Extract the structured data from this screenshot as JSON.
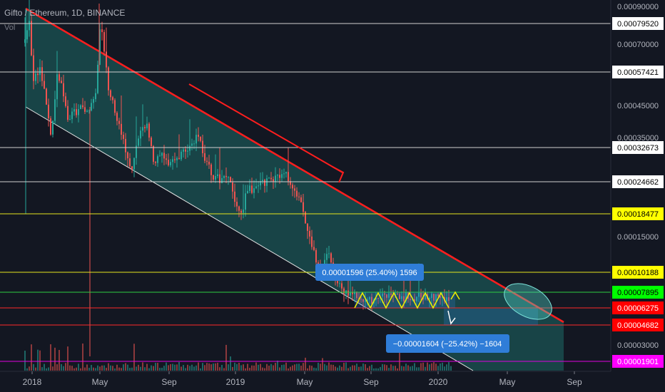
{
  "header": {
    "title": "Gifto / Ethereum, 1D, BINANCE",
    "volume_label": "Vol"
  },
  "chart_data": {
    "type": "candlestick",
    "instrument": "Gifto / Ethereum",
    "interval": "1D",
    "exchange": "BINANCE",
    "x_tick_labels": [
      "2018",
      "May",
      "Sep",
      "2019",
      "May",
      "Sep",
      "2020",
      "May",
      "Sep"
    ],
    "y_tick_labels": [
      "0.00090000",
      "0.00070000",
      "0.00045000",
      "0.00035000",
      "0.00015000",
      "0.00003000"
    ],
    "horizontal_levels": [
      {
        "value": "0.00079520",
        "color": "#ffffff"
      },
      {
        "value": "0.00057421",
        "color": "#ffffff"
      },
      {
        "value": "0.00032673",
        "color": "#ffffff"
      },
      {
        "value": "0.00024662",
        "color": "#ffffff"
      },
      {
        "value": "0.00018477",
        "color": "#ffff00"
      },
      {
        "value": "0.00010188",
        "color": "#ffff00"
      },
      {
        "value": "0.00007895",
        "color": "#00ff00"
      },
      {
        "value": "0.00006275",
        "color": "#ff0000"
      },
      {
        "value": "0.00004682",
        "color": "#ff0000"
      },
      {
        "value": "0.00001901",
        "color": "#ff00ff"
      }
    ],
    "annotations": [
      {
        "text": "0.00001596 (25.40%) 1596",
        "kind": "price-range-up"
      },
      {
        "text": "−0.00001604 (−25.42%) −1604",
        "kind": "price-range-down"
      }
    ],
    "colors": {
      "background": "#131722",
      "bull": "#26a69a",
      "bear": "#ef5350",
      "trendline": "#ff1e1e",
      "channel_fill": "#1e6a66",
      "label_box": "#2f7dd8"
    }
  }
}
